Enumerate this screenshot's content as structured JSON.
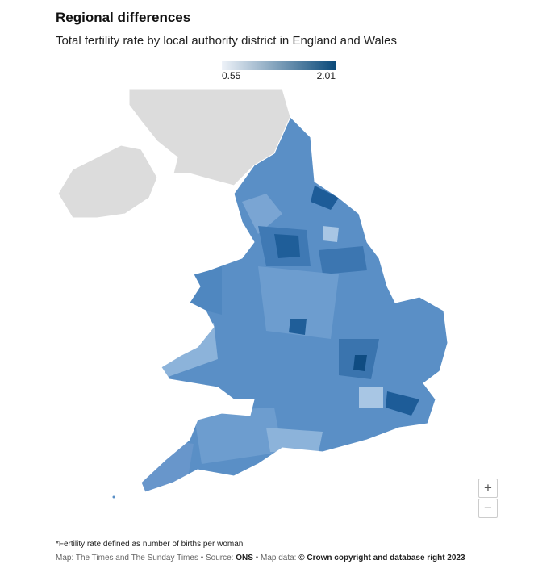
{
  "header": {
    "title": "Regional differences",
    "subtitle": "Total fertility rate by local authority district in England and Wales"
  },
  "legend": {
    "min": 0.55,
    "max": 2.01,
    "color_low": "#eef2f8",
    "color_high": "#0b4a7a"
  },
  "map": {
    "zoom_in": "+",
    "zoom_out": "−"
  },
  "footer": {
    "note": "*Fertility rate defined as number of births per woman",
    "credit": "Map: The Times and The Sunday Times • Source:",
    "source": "ONS",
    "map_data_label": "• Map data:",
    "copyright": "© Crown copyright and database right 2023"
  }
}
